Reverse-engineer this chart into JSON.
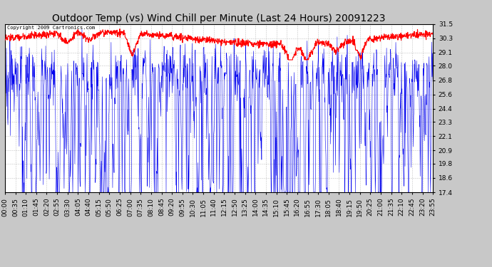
{
  "title": "Outdoor Temp (vs) Wind Chill per Minute (Last 24 Hours) 20091223",
  "copyright_text": "Copyright 2009 Cartronics.com",
  "y_ticks": [
    17.4,
    18.6,
    19.8,
    20.9,
    22.1,
    23.3,
    24.4,
    25.6,
    26.8,
    28.0,
    29.1,
    30.3,
    31.5
  ],
  "y_min": 17.4,
  "y_max": 31.5,
  "x_labels": [
    "00:00",
    "00:35",
    "01:10",
    "01:45",
    "02:20",
    "02:55",
    "03:30",
    "04:05",
    "04:40",
    "05:15",
    "05:50",
    "06:25",
    "07:00",
    "07:35",
    "08:10",
    "08:45",
    "09:20",
    "09:55",
    "10:30",
    "11:05",
    "11:40",
    "12:15",
    "12:50",
    "13:25",
    "14:00",
    "14:35",
    "15:10",
    "15:45",
    "16:20",
    "16:55",
    "17:30",
    "18:05",
    "18:40",
    "19:15",
    "19:50",
    "20:25",
    "21:00",
    "21:35",
    "22:10",
    "22:45",
    "23:20",
    "23:55"
  ],
  "bg_color": "#c8c8c8",
  "plot_bg_color": "#ffffff",
  "grid_color": "#aaaaaa",
  "blue_color": "#0000ee",
  "red_color": "#ff0000",
  "title_fontsize": 10,
  "tick_fontsize": 6.5,
  "copyright_fontsize": 5
}
